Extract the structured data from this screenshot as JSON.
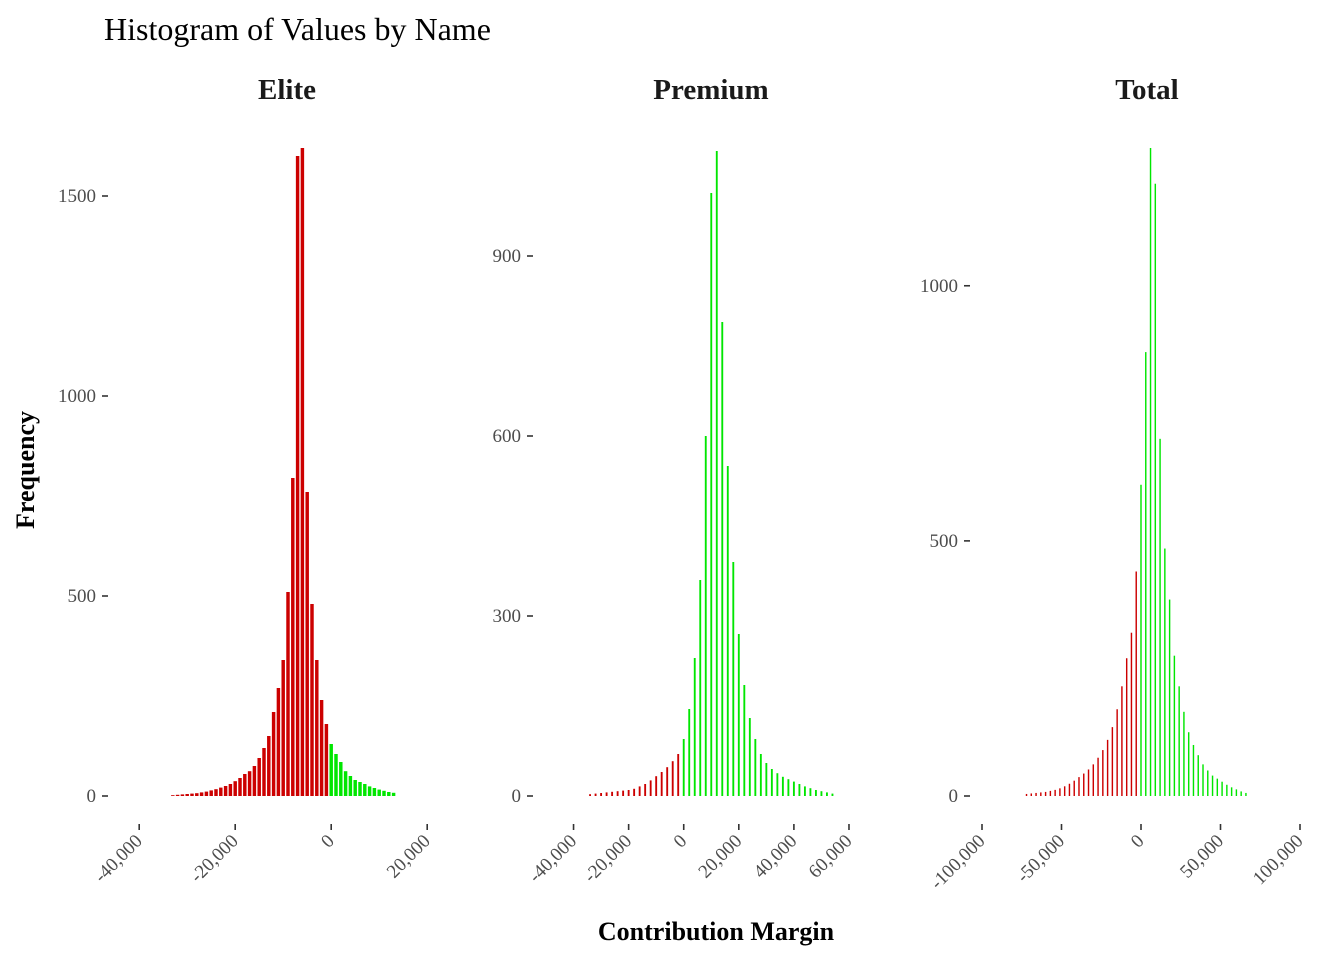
{
  "chart_data": {
    "type": "bar",
    "title": "Histogram of Values by Name",
    "xlabel": "Contribution Margin",
    "ylabel": "Frequency",
    "colors": {
      "negative": "#cc0000",
      "positive": "#00e600"
    },
    "panels": [
      {
        "name": "Elite",
        "xlim": [
          -44000,
          21000
        ],
        "ylim": [
          0,
          1620
        ],
        "x_ticks": [
          -40000,
          -20000,
          0,
          20000
        ],
        "x_tick_labels": [
          "-40,000",
          "-20,000",
          "0",
          "20,000"
        ],
        "y_ticks": [
          0,
          500,
          1000,
          1500
        ],
        "y_tick_labels": [
          "0",
          "500",
          "1000",
          "1500"
        ],
        "bin_width": 720,
        "bins": [
          {
            "x": -33000,
            "y": 2
          },
          {
            "x": -32000,
            "y": 3
          },
          {
            "x": -31000,
            "y": 4
          },
          {
            "x": -30000,
            "y": 5
          },
          {
            "x": -29000,
            "y": 6
          },
          {
            "x": -28000,
            "y": 7
          },
          {
            "x": -27000,
            "y": 9
          },
          {
            "x": -26000,
            "y": 11
          },
          {
            "x": -25000,
            "y": 14
          },
          {
            "x": -24000,
            "y": 17
          },
          {
            "x": -23000,
            "y": 21
          },
          {
            "x": -22000,
            "y": 25
          },
          {
            "x": -21000,
            "y": 30
          },
          {
            "x": -20000,
            "y": 37
          },
          {
            "x": -19000,
            "y": 45
          },
          {
            "x": -18000,
            "y": 55
          },
          {
            "x": -17000,
            "y": 62
          },
          {
            "x": -16000,
            "y": 75
          },
          {
            "x": -15000,
            "y": 95
          },
          {
            "x": -14000,
            "y": 120
          },
          {
            "x": -13000,
            "y": 150
          },
          {
            "x": -12000,
            "y": 210
          },
          {
            "x": -11000,
            "y": 270
          },
          {
            "x": -10000,
            "y": 340
          },
          {
            "x": -9000,
            "y": 510
          },
          {
            "x": -8000,
            "y": 795
          },
          {
            "x": -7000,
            "y": 1600
          },
          {
            "x": -6000,
            "y": 1620
          },
          {
            "x": -5000,
            "y": 760
          },
          {
            "x": -4000,
            "y": 480
          },
          {
            "x": -3000,
            "y": 340
          },
          {
            "x": -2000,
            "y": 240
          },
          {
            "x": -1000,
            "y": 180
          },
          {
            "x": 0,
            "y": 130
          },
          {
            "x": 1000,
            "y": 105
          },
          {
            "x": 2000,
            "y": 85
          },
          {
            "x": 3000,
            "y": 62
          },
          {
            "x": 4000,
            "y": 50
          },
          {
            "x": 5000,
            "y": 40
          },
          {
            "x": 6000,
            "y": 35
          },
          {
            "x": 7000,
            "y": 30
          },
          {
            "x": 8000,
            "y": 24
          },
          {
            "x": 9000,
            "y": 20
          },
          {
            "x": 10000,
            "y": 16
          },
          {
            "x": 11000,
            "y": 13
          },
          {
            "x": 12000,
            "y": 10
          },
          {
            "x": 13000,
            "y": 8
          }
        ]
      },
      {
        "name": "Premium",
        "xlim": [
          -50000,
          64000
        ],
        "ylim": [
          0,
          1080
        ],
        "x_ticks": [
          -40000,
          -20000,
          0,
          20000,
          40000,
          60000
        ],
        "x_tick_labels": [
          "-40,000",
          "-20,000",
          "0",
          "20,000",
          "40,000",
          "60,000"
        ],
        "y_ticks": [
          0,
          300,
          600,
          900
        ],
        "y_tick_labels": [
          "0",
          "300",
          "600",
          "900"
        ],
        "bin_width": 680,
        "bins": [
          {
            "x": -34000,
            "y": 3
          },
          {
            "x": -32000,
            "y": 4
          },
          {
            "x": -30000,
            "y": 5
          },
          {
            "x": -28000,
            "y": 6
          },
          {
            "x": -26000,
            "y": 7
          },
          {
            "x": -24000,
            "y": 8
          },
          {
            "x": -22000,
            "y": 9
          },
          {
            "x": -20000,
            "y": 10
          },
          {
            "x": -18000,
            "y": 12
          },
          {
            "x": -16000,
            "y": 16
          },
          {
            "x": -14000,
            "y": 20
          },
          {
            "x": -12000,
            "y": 26
          },
          {
            "x": -10000,
            "y": 33
          },
          {
            "x": -8000,
            "y": 40
          },
          {
            "x": -6000,
            "y": 48
          },
          {
            "x": -4000,
            "y": 58
          },
          {
            "x": -2000,
            "y": 70
          },
          {
            "x": 0,
            "y": 95
          },
          {
            "x": 2000,
            "y": 145
          },
          {
            "x": 4000,
            "y": 230
          },
          {
            "x": 6000,
            "y": 360
          },
          {
            "x": 8000,
            "y": 600
          },
          {
            "x": 10000,
            "y": 1005
          },
          {
            "x": 12000,
            "y": 1075
          },
          {
            "x": 14000,
            "y": 790
          },
          {
            "x": 16000,
            "y": 550
          },
          {
            "x": 18000,
            "y": 390
          },
          {
            "x": 20000,
            "y": 270
          },
          {
            "x": 22000,
            "y": 185
          },
          {
            "x": 24000,
            "y": 130
          },
          {
            "x": 26000,
            "y": 95
          },
          {
            "x": 28000,
            "y": 70
          },
          {
            "x": 30000,
            "y": 55
          },
          {
            "x": 32000,
            "y": 45
          },
          {
            "x": 34000,
            "y": 38
          },
          {
            "x": 36000,
            "y": 32
          },
          {
            "x": 38000,
            "y": 28
          },
          {
            "x": 40000,
            "y": 24
          },
          {
            "x": 42000,
            "y": 20
          },
          {
            "x": 44000,
            "y": 16
          },
          {
            "x": 46000,
            "y": 13
          },
          {
            "x": 48000,
            "y": 10
          },
          {
            "x": 50000,
            "y": 8
          },
          {
            "x": 52000,
            "y": 6
          },
          {
            "x": 54000,
            "y": 4
          }
        ]
      },
      {
        "name": "Total",
        "xlim": [
          -100000,
          100000
        ],
        "ylim": [
          0,
          1270
        ],
        "x_ticks": [
          -100000,
          -50000,
          0,
          50000,
          100000
        ],
        "x_tick_labels": [
          "-100,000",
          "-50,000",
          "0",
          "50,000",
          "100,000"
        ],
        "y_ticks": [
          0,
          500,
          1000
        ],
        "y_tick_labels": [
          "0",
          "500",
          "1000"
        ],
        "bin_width": 900,
        "bins": [
          {
            "x": -72000,
            "y": 4
          },
          {
            "x": -69000,
            "y": 5
          },
          {
            "x": -66000,
            "y": 6
          },
          {
            "x": -63000,
            "y": 7
          },
          {
            "x": -60000,
            "y": 8
          },
          {
            "x": -57000,
            "y": 10
          },
          {
            "x": -54000,
            "y": 12
          },
          {
            "x": -51000,
            "y": 15
          },
          {
            "x": -48000,
            "y": 19
          },
          {
            "x": -45000,
            "y": 24
          },
          {
            "x": -42000,
            "y": 30
          },
          {
            "x": -39000,
            "y": 37
          },
          {
            "x": -36000,
            "y": 44
          },
          {
            "x": -33000,
            "y": 52
          },
          {
            "x": -30000,
            "y": 62
          },
          {
            "x": -27000,
            "y": 75
          },
          {
            "x": -24000,
            "y": 90
          },
          {
            "x": -21000,
            "y": 110
          },
          {
            "x": -18000,
            "y": 135
          },
          {
            "x": -15000,
            "y": 170
          },
          {
            "x": -12000,
            "y": 215
          },
          {
            "x": -9000,
            "y": 270
          },
          {
            "x": -6000,
            "y": 320
          },
          {
            "x": -3000,
            "y": 440
          },
          {
            "x": 0,
            "y": 610
          },
          {
            "x": 3000,
            "y": 870
          },
          {
            "x": 6000,
            "y": 1270
          },
          {
            "x": 9000,
            "y": 1200
          },
          {
            "x": 12000,
            "y": 700
          },
          {
            "x": 15000,
            "y": 485
          },
          {
            "x": 18000,
            "y": 385
          },
          {
            "x": 21000,
            "y": 275
          },
          {
            "x": 24000,
            "y": 215
          },
          {
            "x": 27000,
            "y": 165
          },
          {
            "x": 30000,
            "y": 125
          },
          {
            "x": 33000,
            "y": 100
          },
          {
            "x": 36000,
            "y": 80
          },
          {
            "x": 39000,
            "y": 62
          },
          {
            "x": 42000,
            "y": 50
          },
          {
            "x": 45000,
            "y": 40
          },
          {
            "x": 48000,
            "y": 34
          },
          {
            "x": 51000,
            "y": 28
          },
          {
            "x": 54000,
            "y": 22
          },
          {
            "x": 57000,
            "y": 17
          },
          {
            "x": 60000,
            "y": 13
          },
          {
            "x": 63000,
            "y": 9
          },
          {
            "x": 66000,
            "y": 6
          }
        ]
      }
    ]
  }
}
